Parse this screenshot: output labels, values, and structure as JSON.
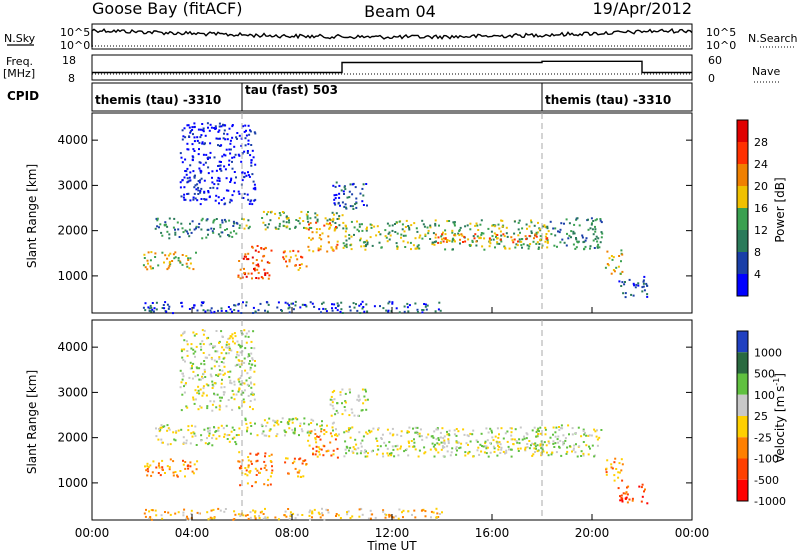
{
  "header": {
    "station": "Goose Bay (fitACF)",
    "beam": "Beam 04",
    "date": "19/Apr/2012"
  },
  "top_panels": {
    "nsky_label": "N.Sky",
    "nsky_ticks": [
      "10^5",
      "10^0"
    ],
    "nsearch_label": "N.Search",
    "nsearch_ticks": [
      "10^5",
      "10^0"
    ],
    "freq_label": "Freq.",
    "freq_unit": "[MHz]",
    "freq_ticks": [
      "18",
      "8"
    ],
    "nave_label": "Nave",
    "nave_ticks": [
      "60",
      "0"
    ],
    "cpid_label": "CPID",
    "cpid_segments": [
      {
        "label": "themis (tau) -3310",
        "start_hour": 0.0,
        "end_hour": 6.0
      },
      {
        "label": "tau (fast) 503",
        "start_hour": 6.0,
        "end_hour": 18.0
      },
      {
        "label": "themis (tau) -3310",
        "start_hour": 18.0,
        "end_hour": 24.0
      }
    ]
  },
  "power_panel": {
    "ylabel": "Slant Range [km]",
    "yticks": [
      "4000",
      "3000",
      "2000",
      "1000"
    ],
    "colorbar_label": "Power [dB]",
    "colorbar_ticks": [
      "28",
      "24",
      "20",
      "16",
      "12",
      "8",
      "4"
    ],
    "colors": [
      "#0000ff",
      "#1a3fa8",
      "#2a7a5a",
      "#3aa050",
      "#f0c000",
      "#f08000",
      "#ff3000",
      "#e00000"
    ]
  },
  "velocity_panel": {
    "ylabel": "Slant Range [km]",
    "yticks": [
      "4000",
      "3000",
      "2000",
      "1000"
    ],
    "colorbar_label": "Velocity [m s",
    "colorbar_sup": "-1",
    "colorbar_label_end": "]",
    "colorbar_ticks": [
      "1000",
      "500",
      "100",
      "25",
      "-25",
      "-100",
      "-500",
      "-1000"
    ],
    "colors": [
      "#2040c0",
      "#2a6a40",
      "#60c040",
      "#c8c8c8",
      "#ffd000",
      "#ff8000",
      "#ff4000",
      "#ff0000"
    ]
  },
  "xaxis": {
    "label": "Time UT",
    "ticks": [
      "00:00",
      "04:00",
      "08:00",
      "12:00",
      "16:00",
      "20:00",
      "00:00"
    ]
  },
  "chart_data": {
    "type": "heatmap",
    "x_range_hours": [
      0,
      24
    ],
    "y_range_km": [
      180,
      4600
    ],
    "frequency_steps": [
      {
        "start_hour": 0.0,
        "end_hour": 10.0,
        "value": 11
      },
      {
        "start_hour": 10.0,
        "end_hour": 18.0,
        "value": 15
      },
      {
        "start_hour": 18.0,
        "end_hour": 22.0,
        "value": 15.5
      },
      {
        "start_hour": 22.0,
        "end_hour": 24.0,
        "value": 11
      }
    ],
    "scatter_regions": [
      {
        "t0": 2.0,
        "t1": 4.2,
        "r0": 1150,
        "r1": 1550,
        "pow_lvl": 4,
        "vel_lvl": 5
      },
      {
        "t0": 2.5,
        "t1": 6.0,
        "r0": 1850,
        "r1": 2300,
        "pow_lvl": 2,
        "vel_lvl": 3
      },
      {
        "t0": 5.8,
        "t1": 7.2,
        "r0": 950,
        "r1": 1700,
        "pow_lvl": 6,
        "vel_lvl": 5
      },
      {
        "t0": 6.0,
        "t1": 10.0,
        "r0": 2050,
        "r1": 2450,
        "pow_lvl": 3,
        "vel_lvl": 3
      },
      {
        "t0": 7.6,
        "t1": 8.6,
        "r0": 1150,
        "r1": 1600,
        "pow_lvl": 5,
        "vel_lvl": 5
      },
      {
        "t0": 8.6,
        "t1": 9.8,
        "r0": 1550,
        "r1": 2200,
        "pow_lvl": 5,
        "vel_lvl": 5
      },
      {
        "t0": 10.0,
        "t1": 18.3,
        "r0": 1600,
        "r1": 2250,
        "pow_lvl": 3,
        "vel_lvl": 3
      },
      {
        "t0": 13.5,
        "t1": 18.3,
        "r0": 1750,
        "r1": 1950,
        "pow_lvl": 5,
        "vel_lvl": 3
      },
      {
        "t0": 18.3,
        "t1": 20.4,
        "r0": 1600,
        "r1": 2300,
        "pow_lvl": 2,
        "vel_lvl": 3
      },
      {
        "t0": 20.5,
        "t1": 21.2,
        "r0": 1050,
        "r1": 1600,
        "pow_lvl": 4,
        "vel_lvl": 5
      },
      {
        "t0": 21.0,
        "t1": 22.2,
        "r0": 550,
        "r1": 1000,
        "pow_lvl": 1,
        "vel_lvl": 6
      },
      {
        "t0": 3.5,
        "t1": 6.5,
        "r0": 2600,
        "r1": 4400,
        "pow_lvl": 0,
        "vel_lvl": 3
      },
      {
        "t0": 9.5,
        "t1": 11.0,
        "r0": 2500,
        "r1": 3100,
        "pow_lvl": 1,
        "vel_lvl": 3
      },
      {
        "t0": 2.0,
        "t1": 14.0,
        "r0": 200,
        "r1": 450,
        "pow_lvl": 1,
        "vel_lvl": 4
      }
    ]
  }
}
